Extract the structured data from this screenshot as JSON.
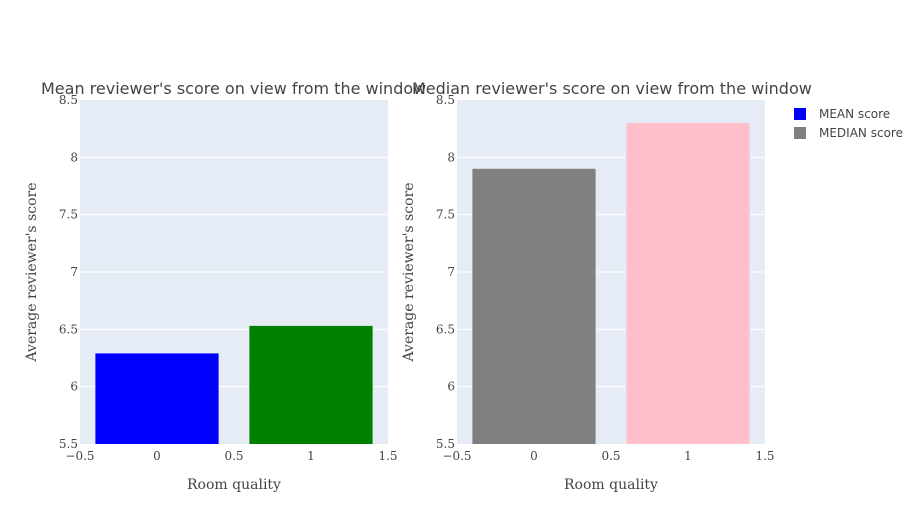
{
  "legend": {
    "items": [
      {
        "label": "MEAN score",
        "color": "#0000ff"
      },
      {
        "label": "MEDIAN score",
        "color": "#808080"
      }
    ]
  },
  "chart_data": [
    {
      "type": "bar",
      "title": "Mean reviewer's score on view from the window",
      "xlabel": "Room quality",
      "ylabel": "Average reviewer's score",
      "xlim": [
        -0.5,
        1.5
      ],
      "ylim": [
        5.5,
        8.5
      ],
      "x_ticks": [
        "−0.5",
        "0",
        "0.5",
        "1",
        "1.5"
      ],
      "y_ticks": [
        "5.5",
        "6",
        "6.5",
        "7",
        "7.5",
        "8",
        "8.5"
      ],
      "grid": true,
      "x": [
        0,
        1
      ],
      "values": [
        6.29,
        6.53
      ],
      "colors": [
        "#0000ff",
        "#008000"
      ]
    },
    {
      "type": "bar",
      "title": "Median reviewer's score on view from the window",
      "xlabel": "Room quality",
      "ylabel": "Average reviewer's score",
      "xlim": [
        -0.5,
        1.5
      ],
      "ylim": [
        5.5,
        8.5
      ],
      "x_ticks": [
        "−0.5",
        "0",
        "0.5",
        "1",
        "1.5"
      ],
      "y_ticks": [
        "5.5",
        "6",
        "6.5",
        "7",
        "7.5",
        "8",
        "8.5"
      ],
      "grid": true,
      "x": [
        0,
        1
      ],
      "values": [
        7.9,
        8.3
      ],
      "colors": [
        "#808080",
        "#ffc0cb"
      ]
    }
  ]
}
